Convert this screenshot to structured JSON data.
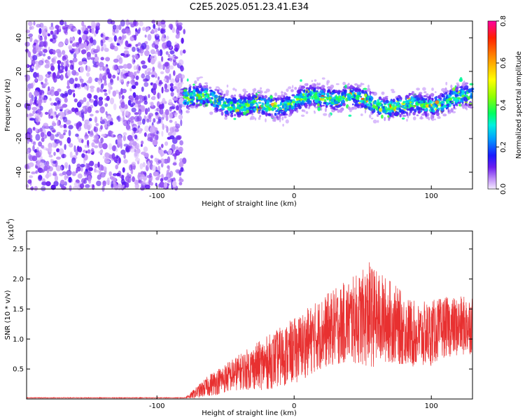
{
  "title": "C2E5.2025.051.23.41.E34",
  "chart_data": [
    {
      "type": "heatmap",
      "xlabel": "Height of straight line (km)",
      "ylabel": "Frequency (Hz)",
      "xlim": [
        -195,
        130
      ],
      "ylim": [
        -50,
        50
      ],
      "xticks": [
        -100,
        0,
        100
      ],
      "xtick_labels": [
        "-100",
        "0",
        "100"
      ],
      "yticks": [
        -40,
        -20,
        0,
        20,
        40
      ],
      "ytick_labels": [
        "-40",
        "-20",
        "0",
        "20",
        "40"
      ],
      "grid": false,
      "colorbar": {
        "label": "Normalized spectral amplitude",
        "range": [
          0.0,
          0.8
        ],
        "ticks": [
          0.0,
          0.2,
          0.4,
          0.6,
          0.8
        ],
        "tick_labels": [
          "0.0",
          "0.2",
          "0.4",
          "0.6",
          "0.8"
        ]
      },
      "regions": [
        {
          "x_range": [
            -195,
            -80
          ],
          "freq_range": [
            -50,
            50
          ],
          "amplitude": [
            0.02,
            0.12
          ]
        },
        {
          "x_range": [
            -80,
            130
          ],
          "freq_range": [
            -8,
            12
          ],
          "amplitude": [
            0.1,
            0.7
          ]
        }
      ]
    },
    {
      "type": "line",
      "xlabel": "Height of straight line (km)",
      "ylabel": "SNR (10 * v/v)",
      "y_multiplier": "(x10",
      "y_multiplier_exp": "4",
      "xlim": [
        -195,
        130
      ],
      "ylim": [
        0,
        2.8
      ],
      "xticks": [
        -100,
        0,
        100
      ],
      "xtick_labels": [
        "-100",
        "0",
        "100"
      ],
      "yticks": [
        0.5,
        1.0,
        1.5,
        2.0,
        2.5
      ],
      "ytick_labels": [
        "0.5",
        "1.0",
        "1.5",
        "2.0",
        "2.5"
      ],
      "grid": false,
      "series": [
        {
          "color": "#e83030",
          "envelope": {
            "x": [
              -195,
              -80,
              -75,
              -60,
              -40,
              -20,
              0,
              20,
              40,
              50,
              55,
              60,
              70,
              80,
              90,
              100,
              110,
              120,
              130
            ],
            "center": [
              0.02,
              0.02,
              0.06,
              0.25,
              0.45,
              0.6,
              0.8,
              1.1,
              1.3,
              1.35,
              1.4,
              1.35,
              1.3,
              1.15,
              1.05,
              1.1,
              1.2,
              1.2,
              1.25
            ],
            "amplitude": [
              0.005,
              0.005,
              0.06,
              0.2,
              0.3,
              0.45,
              0.55,
              0.6,
              0.7,
              0.8,
              0.9,
              0.8,
              0.7,
              0.6,
              0.55,
              0.55,
              0.5,
              0.5,
              0.5
            ]
          }
        }
      ]
    }
  ]
}
